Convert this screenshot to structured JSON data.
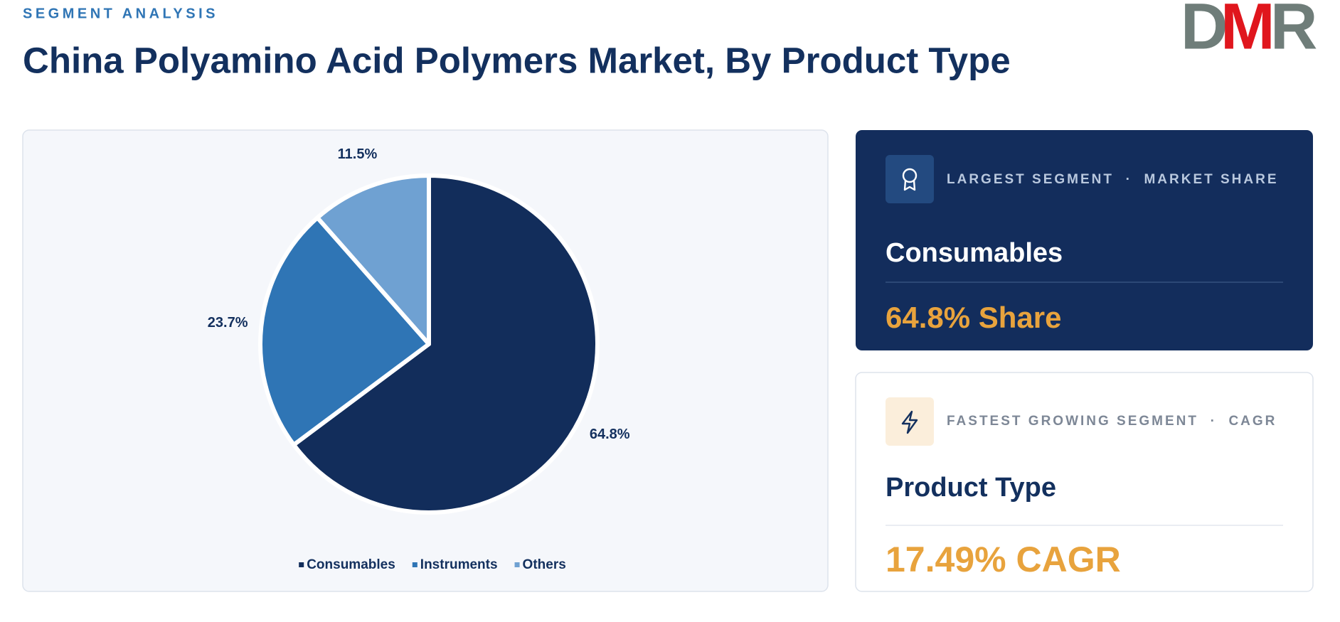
{
  "header": {
    "eyebrow": "SEGMENT ANALYSIS",
    "title": "China Polyamino Acid Polymers Market, By Product Type",
    "logo": [
      "D",
      "M",
      "R"
    ]
  },
  "chart_data": {
    "type": "pie",
    "categories": [
      "Consumables",
      "Instruments",
      "Others"
    ],
    "values": [
      64.8,
      23.7,
      11.5
    ],
    "value_labels": [
      "64.8%",
      "23.7%",
      "11.5%"
    ],
    "colors": [
      "#122d5b",
      "#2f75b5",
      "#6fa1d2"
    ],
    "legend": true
  },
  "cards": [
    {
      "label": "LARGEST SEGMENT  ·  MARKET SHARE",
      "segment": "Consumables",
      "metric": "64.8% Share"
    },
    {
      "label": "FASTEST GROWING SEGMENT  ·  CAGR",
      "segment": "Product Type",
      "metric": "17.49% CAGR"
    }
  ]
}
